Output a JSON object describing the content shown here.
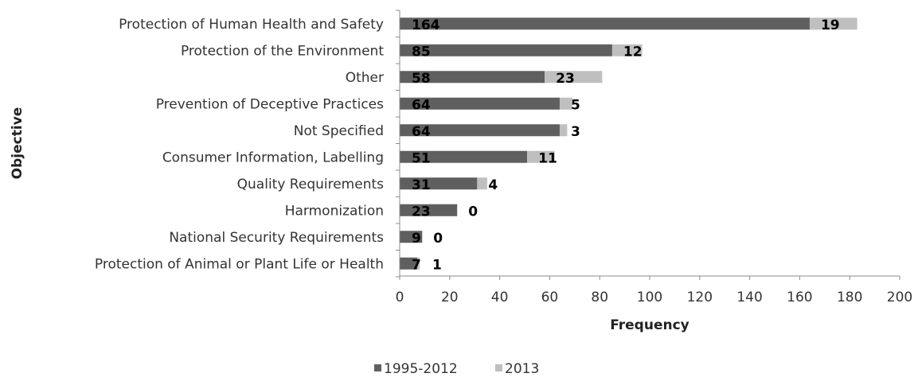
{
  "chart_data": {
    "type": "bar",
    "orientation": "horizontal",
    "stacked": true,
    "categories": [
      "Protection of Human Health and Safety",
      "Protection of the Environment",
      "Other",
      "Prevention of Deceptive Practices",
      "Not Specified",
      "Consumer Information, Labelling",
      "Quality Requirements",
      "Harmonization",
      "National Security Requirements",
      "Protection of Animal or Plant Life or Health"
    ],
    "series": [
      {
        "name": "1995-2012",
        "color": "#5f5f5f",
        "values": [
          164,
          85,
          58,
          64,
          64,
          51,
          31,
          23,
          9,
          7
        ]
      },
      {
        "name": "2013",
        "color": "#bfbfbf",
        "values": [
          19,
          12,
          23,
          5,
          3,
          11,
          4,
          0,
          0,
          1
        ]
      }
    ],
    "xlabel": "Frequency",
    "ylabel": "Objective",
    "xlim": [
      0,
      200
    ],
    "xticks": [
      0,
      20,
      40,
      60,
      80,
      100,
      120,
      140,
      160,
      180,
      200
    ],
    "grid": false,
    "legend_position": "bottom"
  }
}
